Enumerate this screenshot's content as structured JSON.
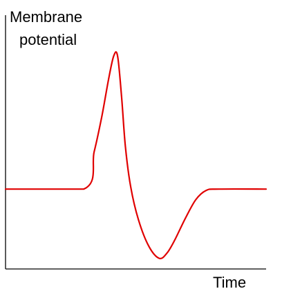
{
  "chart_data": {
    "type": "line",
    "title": "",
    "ylabel": [
      "Membrane",
      "potential"
    ],
    "xlabel": "Time",
    "grid": false,
    "legend": "none",
    "line_color": "#e00000",
    "series": [
      {
        "points": [
          [
            0,
            0
          ],
          [
            30,
            0
          ],
          [
            34,
            0.28
          ],
          [
            37,
            0.55
          ],
          [
            39.5,
            0.82
          ],
          [
            41.5,
            1.0
          ],
          [
            43,
            1.0
          ],
          [
            44.5,
            0.7
          ],
          [
            46,
            0.32
          ],
          [
            48,
            0.02
          ],
          [
            51,
            -0.23
          ],
          [
            55,
            -0.43
          ],
          [
            59,
            -0.52
          ],
          [
            62,
            -0.48
          ],
          [
            65,
            -0.38
          ],
          [
            69,
            -0.22
          ],
          [
            73,
            -0.08
          ],
          [
            77,
            -0.01
          ],
          [
            82,
            0
          ],
          [
            100,
            0
          ]
        ]
      }
    ],
    "xlim": [
      0,
      100
    ],
    "ylim": [
      -0.6,
      1.12
    ]
  }
}
